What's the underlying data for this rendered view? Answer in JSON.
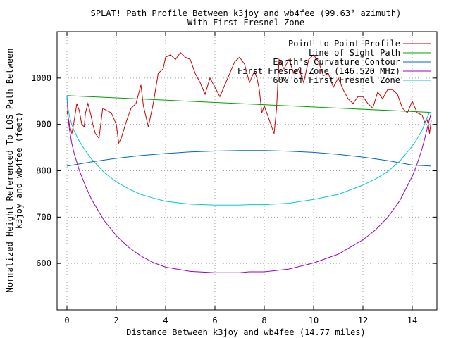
{
  "chart_data": {
    "type": "line",
    "title": "SPLAT! Path Profile Between k3joy and wb4fee (99.63° azimuth)",
    "subtitle": "With First Fresnel Zone",
    "xlabel": "Distance Between k3joy and wb4fee (14.77 miles)",
    "ylabel_line1": "Normalized Height Referenced To LOS Path Between",
    "ylabel_line2": "k3joy and wb4fee (feet)",
    "xlim": [
      -0.4,
      15.0
    ],
    "ylim": [
      500,
      1100
    ],
    "x_ticks": [
      {
        "value": 0,
        "label": "0"
      },
      {
        "value": 2,
        "label": "2"
      },
      {
        "value": 4,
        "label": "4"
      },
      {
        "value": 6,
        "label": "6"
      },
      {
        "value": 8,
        "label": "8"
      },
      {
        "value": 10,
        "label": "10"
      },
      {
        "value": 12,
        "label": "12"
      },
      {
        "value": 14,
        "label": "14"
      }
    ],
    "y_ticks": [
      {
        "value": 600,
        "label": "600"
      },
      {
        "value": 700,
        "label": "700"
      },
      {
        "value": 800,
        "label": "800"
      },
      {
        "value": 900,
        "label": "900"
      },
      {
        "value": 1000,
        "label": "1000"
      }
    ],
    "grid": true,
    "legend_position": "top-right",
    "series": [
      {
        "name": "Point-to-Point Profile",
        "color": "#cc0000",
        "x": [
          0.0,
          0.1,
          0.2,
          0.3,
          0.4,
          0.5,
          0.6,
          0.7,
          0.75,
          0.85,
          0.95,
          1.05,
          1.15,
          1.3,
          1.45,
          1.6,
          1.8,
          2.0,
          2.1,
          2.2,
          2.4,
          2.6,
          2.8,
          3.0,
          3.1,
          3.3,
          3.5,
          3.7,
          3.9,
          4.0,
          4.2,
          4.4,
          4.6,
          4.8,
          5.0,
          5.2,
          5.4,
          5.6,
          5.8,
          6.0,
          6.2,
          6.4,
          6.6,
          6.8,
          7.0,
          7.2,
          7.4,
          7.6,
          7.7,
          7.8,
          7.9,
          8.0,
          8.1,
          8.2,
          8.3,
          8.4,
          8.5,
          8.6,
          8.8,
          9.0,
          9.2,
          9.4,
          9.6,
          9.8,
          10.0,
          10.2,
          10.4,
          10.6,
          10.8,
          11.0,
          11.2,
          11.4,
          11.6,
          11.8,
          12.0,
          12.2,
          12.4,
          12.6,
          12.8,
          13.0,
          13.2,
          13.4,
          13.6,
          13.8,
          14.0,
          14.2,
          14.4,
          14.5,
          14.6,
          14.65,
          14.7,
          14.77
        ],
        "y": [
          930,
          900,
          880,
          910,
          945,
          930,
          900,
          895,
          925,
          945,
          925,
          900,
          880,
          870,
          935,
          930,
          925,
          900,
          860,
          870,
          905,
          935,
          945,
          985,
          940,
          895,
          945,
          1010,
          1020,
          1045,
          1050,
          1040,
          1055,
          1045,
          1040,
          1010,
          990,
          965,
          1000,
          980,
          960,
          985,
          1010,
          1035,
          1045,
          1030,
          990,
          1015,
          1000,
          975,
          925,
          940,
          925,
          910,
          895,
          880,
          935,
          1040,
          1020,
          1040,
          1010,
          1020,
          990,
          1040,
          1050,
          1035,
          1005,
          1010,
          980,
          1000,
          975,
          955,
          945,
          960,
          960,
          945,
          935,
          970,
          955,
          975,
          975,
          965,
          935,
          925,
          950,
          925,
          920,
          905,
          910,
          900,
          880,
          910
        ]
      },
      {
        "name": "Line of Sight Path",
        "color": "#00a000",
        "x": [
          0,
          14.77
        ],
        "y": [
          962,
          926
        ]
      },
      {
        "name": "Earth's Curvature Contour",
        "color": "#0066cc",
        "x": [
          0.0,
          1.0,
          2.0,
          3.0,
          4.0,
          5.0,
          6.0,
          7.0,
          7.385,
          8.0,
          9.0,
          10.0,
          11.0,
          12.0,
          13.0,
          14.0,
          14.77
        ],
        "y": [
          810,
          819.2,
          826.8,
          832.8,
          837.2,
          840.5,
          842.6,
          843.6,
          843.7,
          843.7,
          842.3,
          839.6,
          835.3,
          829.4,
          821.8,
          812.3,
          810
        ]
      },
      {
        "name": "First Fresnel Zone (146.520 MHz)",
        "color": "#9900cc",
        "x": [
          0.0,
          0.05,
          0.1,
          0.2,
          0.3,
          0.5,
          0.75,
          1.0,
          1.5,
          2.0,
          2.5,
          3.0,
          3.5,
          4.0,
          5.0,
          6.0,
          7.0,
          7.385,
          8.0,
          9.0,
          10.0,
          11.0,
          12.0,
          12.5,
          13.0,
          13.5,
          14.0,
          14.2,
          14.4,
          14.5,
          14.6,
          14.7,
          14.77
        ],
        "y": [
          962,
          912,
          890,
          858,
          836,
          801,
          767,
          738,
          693,
          660,
          635,
          616,
          602,
          592,
          583,
          580,
          580,
          582,
          582,
          588,
          601,
          620,
          651,
          672,
          699,
          736,
          788,
          815,
          848,
          868,
          890,
          911,
          926
        ]
      },
      {
        "name": "60% of First Fresnel Zone",
        "color": "#00cccc",
        "x": [
          0.0,
          0.05,
          0.1,
          0.2,
          0.3,
          0.5,
          0.75,
          1.0,
          1.5,
          2.0,
          2.5,
          3.0,
          3.5,
          4.0,
          5.0,
          6.0,
          7.0,
          7.385,
          8.0,
          9.0,
          10.0,
          11.0,
          12.0,
          12.5,
          13.0,
          13.5,
          14.0,
          14.2,
          14.4,
          14.5,
          14.6,
          14.7,
          14.77
        ],
        "y": [
          962,
          932,
          918,
          899,
          885,
          864,
          843,
          825,
          797,
          776,
          761,
          749,
          741,
          734,
          728,
          726,
          726,
          727,
          727,
          730,
          738,
          749,
          769,
          782,
          798,
          821,
          853,
          869,
          888,
          900,
          914,
          926,
          926
        ]
      }
    ]
  }
}
